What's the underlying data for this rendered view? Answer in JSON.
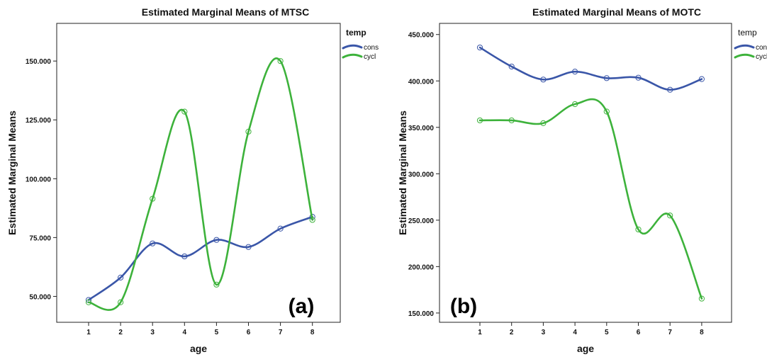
{
  "chart_data": [
    {
      "type": "line",
      "panel_label": "(a)",
      "title": "Estimated Marginal Means of MTSC",
      "xlabel": "age",
      "ylabel": "Estimated Marginal Means",
      "legend_title": "temp",
      "legend_bold": true,
      "legend_position": "top-right outside",
      "categories": [
        "1",
        "2",
        "3",
        "4",
        "5",
        "6",
        "7",
        "8"
      ],
      "yticks": [
        50,
        75,
        100,
        125,
        150
      ],
      "ytick_labels": [
        "50.000",
        "75.000",
        "100.000",
        "125.000",
        "150.000"
      ],
      "ylim": [
        39,
        166
      ],
      "grid": false,
      "series": [
        {
          "name": "cons",
          "color": "#3a56a8",
          "values": [
            48.5,
            58.0,
            72.5,
            67.0,
            74.0,
            71.0,
            78.8,
            83.8
          ]
        },
        {
          "name": "cycl",
          "color": "#3db23b",
          "values": [
            47.5,
            47.5,
            91.5,
            128.5,
            55.0,
            120.0,
            150.0,
            82.5
          ]
        }
      ]
    },
    {
      "type": "line",
      "panel_label": "(b)",
      "title": "Estimated Marginal Means of MOTC",
      "xlabel": "age",
      "ylabel": "Estimated Marginal Means",
      "legend_title": "temp",
      "legend_bold": false,
      "legend_position": "top-right outside",
      "categories": [
        "1",
        "2",
        "3",
        "4",
        "5",
        "6",
        "7",
        "8"
      ],
      "yticks": [
        150,
        200,
        250,
        300,
        350,
        400,
        450
      ],
      "ytick_labels": [
        "150.000",
        "200.000",
        "250.000",
        "300.000",
        "350.000",
        "400.000",
        "450.000"
      ],
      "ylim": [
        140,
        462
      ],
      "grid": false,
      "series": [
        {
          "name": "cons",
          "color": "#3a56a8",
          "values": [
            436.0,
            415.5,
            401.5,
            410.0,
            403.0,
            403.5,
            390.5,
            402.0
          ]
        },
        {
          "name": "cycl",
          "color": "#3db23b",
          "values": [
            357.5,
            357.5,
            354.5,
            375.0,
            367.0,
            240.0,
            255.0,
            165.5
          ]
        }
      ]
    }
  ]
}
